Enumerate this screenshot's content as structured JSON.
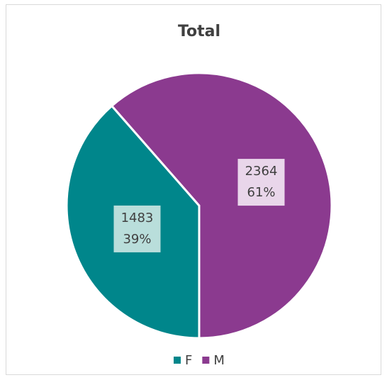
{
  "chart_data": {
    "type": "pie",
    "title": "Total",
    "categories": [
      "F",
      "M"
    ],
    "values": [
      1483,
      2364
    ],
    "percent_labels": [
      "39%",
      "61%"
    ],
    "colors": [
      "#00868b",
      "#8b3a8f"
    ],
    "legend": "bottom"
  }
}
